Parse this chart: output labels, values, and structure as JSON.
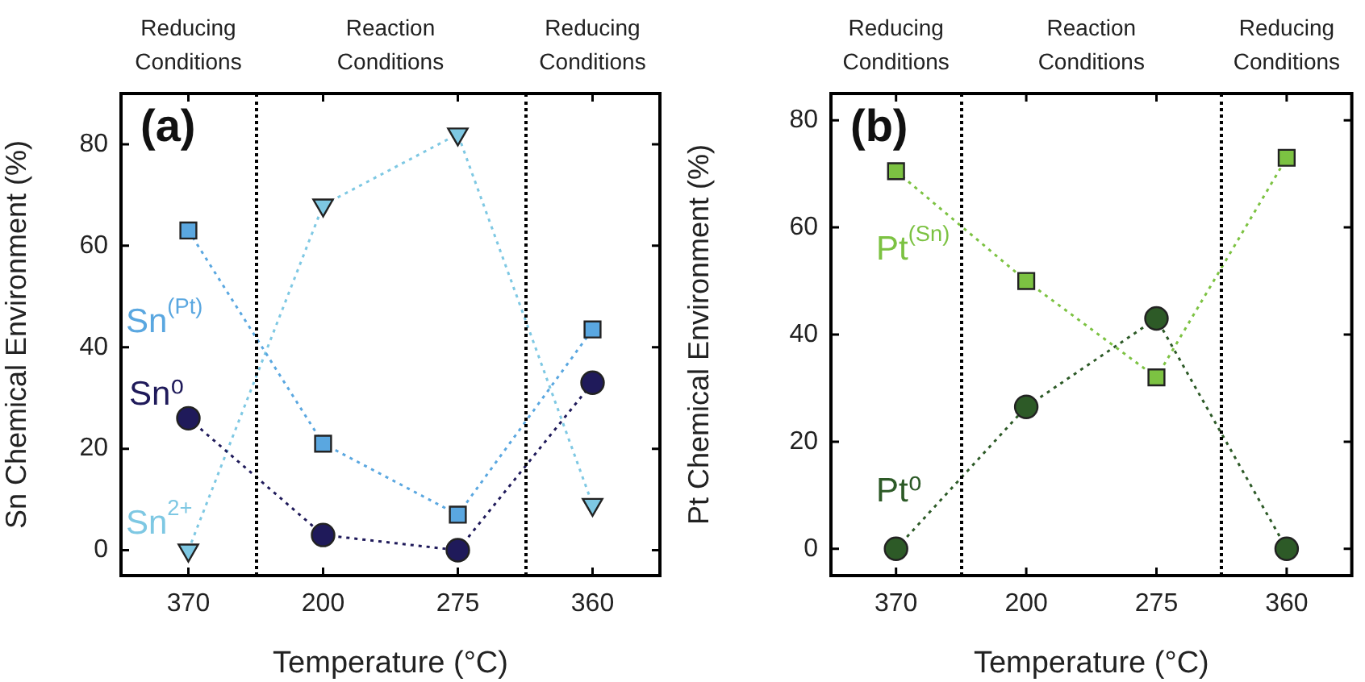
{
  "chart_data": [
    {
      "type": "line",
      "title": "(a)",
      "xlabel": "Temperature (°C)",
      "ylabel": "Sn Chemical Environment (%)",
      "categories": [
        "370",
        "200",
        "275",
        "360"
      ],
      "ylim": [
        -5,
        90
      ],
      "yticks": [
        0,
        20,
        40,
        60,
        80
      ],
      "grid": false,
      "legend": false,
      "line_style": "dotted",
      "series": [
        {
          "name": "Sn$^{(Pt)}$",
          "color": "#5aa7e0",
          "marker": "square",
          "values": [
            63,
            21,
            7,
            43.5
          ]
        },
        {
          "name": "Sn⁰",
          "color": "#1f1a5a",
          "marker": "circle",
          "values": [
            26,
            3,
            0,
            33
          ]
        },
        {
          "name": "Sn$^{2+}$",
          "color": "#7ec8e3",
          "marker": "triangle",
          "values": [
            0,
            68,
            82,
            9
          ]
        }
      ],
      "annotations": [
        "Reducing Conditions",
        "Reaction Conditions",
        "Reducing Conditions"
      ]
    },
    {
      "type": "line",
      "title": "(b)",
      "xlabel": "Temperature (°C)",
      "ylabel": "Pt Chemical Environment (%)",
      "categories": [
        "370",
        "200",
        "275",
        "360"
      ],
      "ylim": [
        -5,
        85
      ],
      "yticks": [
        0,
        20,
        40,
        60,
        80
      ],
      "grid": false,
      "legend": false,
      "line_style": "dotted",
      "series": [
        {
          "name": "Pt$^{(Sn)}$",
          "color": "#7cc242",
          "marker": "square",
          "values": [
            70.5,
            50,
            32,
            73
          ]
        },
        {
          "name": "Pt⁰",
          "color": "#2d5a27",
          "marker": "circle",
          "values": [
            0,
            26.5,
            43,
            0
          ]
        }
      ],
      "annotations": [
        "Reducing Conditions",
        "Reaction Conditions",
        "Reducing Conditions"
      ]
    }
  ]
}
